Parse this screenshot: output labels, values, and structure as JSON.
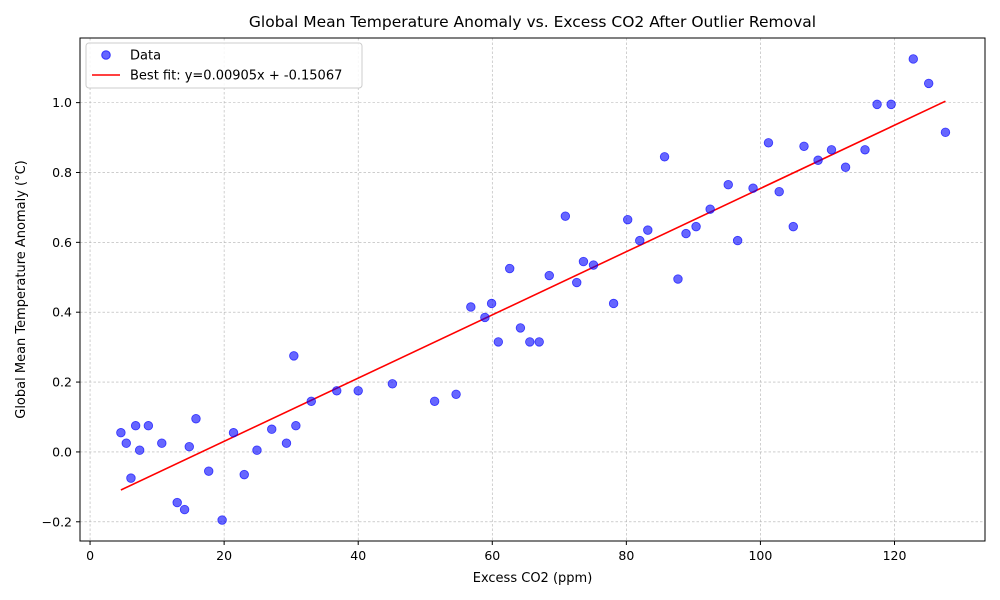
{
  "chart_data": {
    "type": "scatter",
    "title": "Global Mean Temperature Anomaly vs. Excess CO2 After Outlier Removal",
    "xlabel": "Excess CO2 (ppm)",
    "ylabel": "Global Mean Temperature Anomaly (°C)",
    "xlim": [
      -1.5,
      133.5
    ],
    "ylim": [
      -0.255,
      1.185
    ],
    "xticks": [
      0,
      20,
      40,
      60,
      80,
      100,
      120
    ],
    "yticks": [
      -0.2,
      0.0,
      0.2,
      0.4,
      0.6,
      0.8,
      1.0
    ],
    "xtick_labels": [
      "0",
      "20",
      "40",
      "60",
      "80",
      "100",
      "120"
    ],
    "ytick_labels": [
      "−0.2",
      "0.0",
      "0.2",
      "0.4",
      "0.6",
      "0.8",
      "1.0"
    ],
    "grid": true,
    "legend_position": "top-left",
    "series": [
      {
        "name": "Data",
        "kind": "scatter",
        "color": "#0000ff",
        "points": [
          [
            4.6,
            0.055
          ],
          [
            5.4,
            0.025
          ],
          [
            6.1,
            -0.075
          ],
          [
            6.8,
            0.075
          ],
          [
            7.4,
            0.005
          ],
          [
            8.7,
            0.075
          ],
          [
            10.7,
            0.025
          ],
          [
            13.0,
            -0.145
          ],
          [
            14.1,
            -0.165
          ],
          [
            14.8,
            0.015
          ],
          [
            15.8,
            0.095
          ],
          [
            17.7,
            -0.055
          ],
          [
            19.7,
            -0.195
          ],
          [
            21.4,
            0.055
          ],
          [
            23.0,
            -0.065
          ],
          [
            24.9,
            0.005
          ],
          [
            27.1,
            0.065
          ],
          [
            29.3,
            0.025
          ],
          [
            30.4,
            0.275
          ],
          [
            30.7,
            0.075
          ],
          [
            33.0,
            0.145
          ],
          [
            36.8,
            0.175
          ],
          [
            40.0,
            0.175
          ],
          [
            45.1,
            0.195
          ],
          [
            51.4,
            0.145
          ],
          [
            54.6,
            0.165
          ],
          [
            56.8,
            0.415
          ],
          [
            58.9,
            0.385
          ],
          [
            59.9,
            0.425
          ],
          [
            60.9,
            0.315
          ],
          [
            62.6,
            0.525
          ],
          [
            64.2,
            0.355
          ],
          [
            65.6,
            0.315
          ],
          [
            67.0,
            0.315
          ],
          [
            68.5,
            0.505
          ],
          [
            70.9,
            0.675
          ],
          [
            72.6,
            0.485
          ],
          [
            73.6,
            0.545
          ],
          [
            75.1,
            0.535
          ],
          [
            78.1,
            0.425
          ],
          [
            80.2,
            0.665
          ],
          [
            82.0,
            0.605
          ],
          [
            83.2,
            0.635
          ],
          [
            85.7,
            0.845
          ],
          [
            87.7,
            0.495
          ],
          [
            88.9,
            0.625
          ],
          [
            90.4,
            0.645
          ],
          [
            92.5,
            0.695
          ],
          [
            95.2,
            0.765
          ],
          [
            96.6,
            0.605
          ],
          [
            98.9,
            0.755
          ],
          [
            101.2,
            0.885
          ],
          [
            102.8,
            0.745
          ],
          [
            104.9,
            0.645
          ],
          [
            106.5,
            0.875
          ],
          [
            108.6,
            0.835
          ],
          [
            110.6,
            0.865
          ],
          [
            112.7,
            0.815
          ],
          [
            115.6,
            0.865
          ],
          [
            117.4,
            0.995
          ],
          [
            119.5,
            0.995
          ],
          [
            122.8,
            1.125
          ],
          [
            125.1,
            1.055
          ],
          [
            127.6,
            0.915
          ]
        ]
      },
      {
        "name": "Best fit: y=0.00905x + -0.15067",
        "kind": "line",
        "color": "#ff0000",
        "slope": 0.00905,
        "intercept": -0.15067,
        "x_range": [
          4.6,
          127.6
        ]
      }
    ]
  }
}
